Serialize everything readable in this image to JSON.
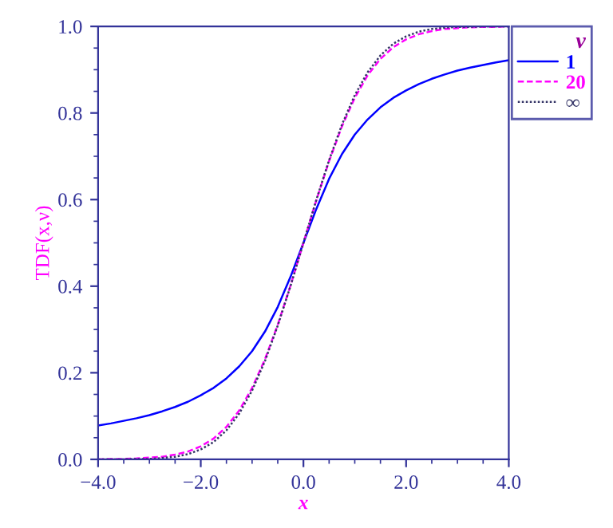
{
  "chart_data": {
    "type": "line",
    "xlabel": "x",
    "ylabel": "TDF(x,ν)",
    "legend_title": "ν",
    "legend": "top right",
    "x": [
      -4,
      -3.75,
      -3.5,
      -3.25,
      -3,
      -2.75,
      -2.5,
      -2.25,
      -2,
      -1.75,
      -1.5,
      -1.25,
      -1,
      -0.75,
      -0.5,
      -0.25,
      0,
      0.25,
      0.5,
      0.75,
      1,
      1.25,
      1.5,
      1.75,
      2,
      2.25,
      2.5,
      2.75,
      3,
      3.25,
      3.5,
      3.75,
      4
    ],
    "series": [
      {
        "name": "1",
        "color": "#0000ff",
        "line_style": "solid",
        "values": [
          0.078,
          0.083,
          0.089,
          0.095,
          0.102,
          0.111,
          0.121,
          0.133,
          0.148,
          0.165,
          0.187,
          0.215,
          0.25,
          0.295,
          0.352,
          0.422,
          0.5,
          0.578,
          0.648,
          0.705,
          0.75,
          0.785,
          0.813,
          0.835,
          0.852,
          0.867,
          0.879,
          0.889,
          0.898,
          0.905,
          0.911,
          0.917,
          0.922
        ]
      },
      {
        "name": "20",
        "color": "#ff00ff",
        "line_style": "dashed",
        "values": [
          0.0,
          0.001,
          0.001,
          0.002,
          0.004,
          0.006,
          0.011,
          0.018,
          0.03,
          0.048,
          0.075,
          0.113,
          0.165,
          0.231,
          0.311,
          0.402,
          0.5,
          0.598,
          0.689,
          0.769,
          0.835,
          0.887,
          0.925,
          0.952,
          0.97,
          0.982,
          0.989,
          0.994,
          0.996,
          0.998,
          0.999,
          0.999,
          1.0
        ]
      },
      {
        "name": "∞",
        "color": "#333366",
        "line_style": "dotted",
        "values": [
          0.0,
          0.0,
          0.0,
          0.001,
          0.001,
          0.003,
          0.006,
          0.012,
          0.023,
          0.04,
          0.067,
          0.106,
          0.159,
          0.227,
          0.309,
          0.401,
          0.5,
          0.599,
          0.691,
          0.773,
          0.841,
          0.894,
          0.933,
          0.96,
          0.977,
          0.988,
          0.994,
          0.997,
          0.999,
          0.999,
          1.0,
          1.0,
          1.0
        ]
      }
    ],
    "xlim": [
      -4,
      4
    ],
    "xticks": [
      {
        "value": -4,
        "label": "−4.0"
      },
      {
        "value": -2,
        "label": "−2.0"
      },
      {
        "value": 0,
        "label": "0.0"
      },
      {
        "value": 2,
        "label": "2.0"
      },
      {
        "value": 4,
        "label": "4.0"
      }
    ],
    "ylim": [
      0,
      1
    ],
    "yticks": [
      {
        "value": 0,
        "label": "0.0"
      },
      {
        "value": 0.2,
        "label": "0.2"
      },
      {
        "value": 0.4,
        "label": "0.4"
      },
      {
        "value": 0.6,
        "label": "0.6"
      },
      {
        "value": 0.8,
        "label": "0.8"
      },
      {
        "value": 1,
        "label": "1.0"
      }
    ],
    "grid": false
  }
}
